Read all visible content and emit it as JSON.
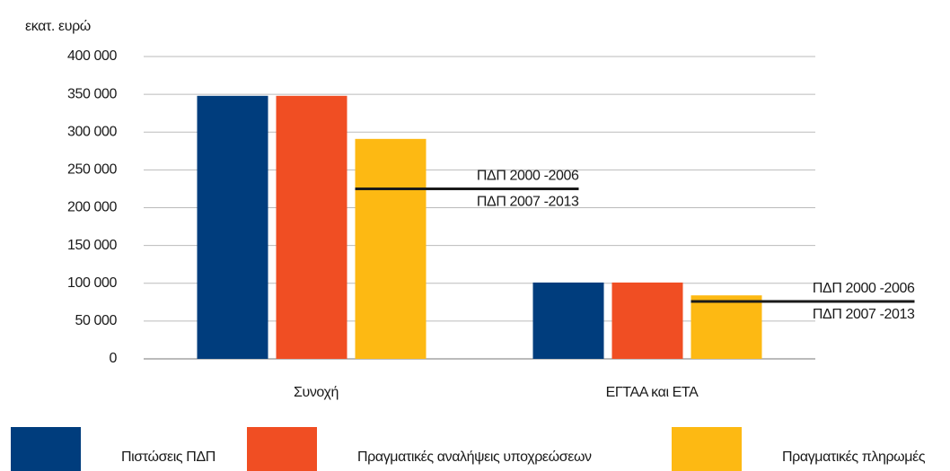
{
  "chart_data": {
    "type": "bar",
    "y_axis_label": "εκατ. ευρώ",
    "categories": [
      "Συνοχή",
      "ΕΓΤΑΑ και ΕΤΑ"
    ],
    "series": [
      {
        "name": "Πιστώσεις ΠΔΠ",
        "color": "#003d7d",
        "values": [
          348000,
          101000
        ]
      },
      {
        "name": "Πραγματικές αναλήψεις υποχρεώσεων",
        "color": "#f04e23",
        "values": [
          348000,
          101000
        ]
      },
      {
        "name": "Πραγματικές πληρωμές",
        "color": "#fdb913",
        "values": [
          291000,
          84000
        ]
      }
    ],
    "annotations": [
      {
        "value": 225000,
        "label_above": "ΠΔΠ 2000 -2006",
        "label_below": "ΠΔΠ 2007 -2013"
      },
      {
        "value": 76000,
        "label_above": "ΠΔΠ 2000 -2006",
        "label_below": "ΠΔΠ 2007 -2013"
      }
    ],
    "ylim": [
      0,
      400000
    ],
    "yticks": [
      0,
      {
        "value": 50000,
        "label": "50 000"
      },
      {
        "value": 100000,
        "label": "100 000"
      },
      {
        "value": 150000,
        "label": "150 000"
      },
      {
        "value": 200000,
        "label": "200 000"
      },
      {
        "value": 250000,
        "label": "250 000"
      },
      {
        "value": 300000,
        "label": "300 000"
      },
      {
        "value": 350000,
        "label": "350 000"
      },
      {
        "value": 400000,
        "label": "400 000"
      }
    ],
    "grid": true
  }
}
